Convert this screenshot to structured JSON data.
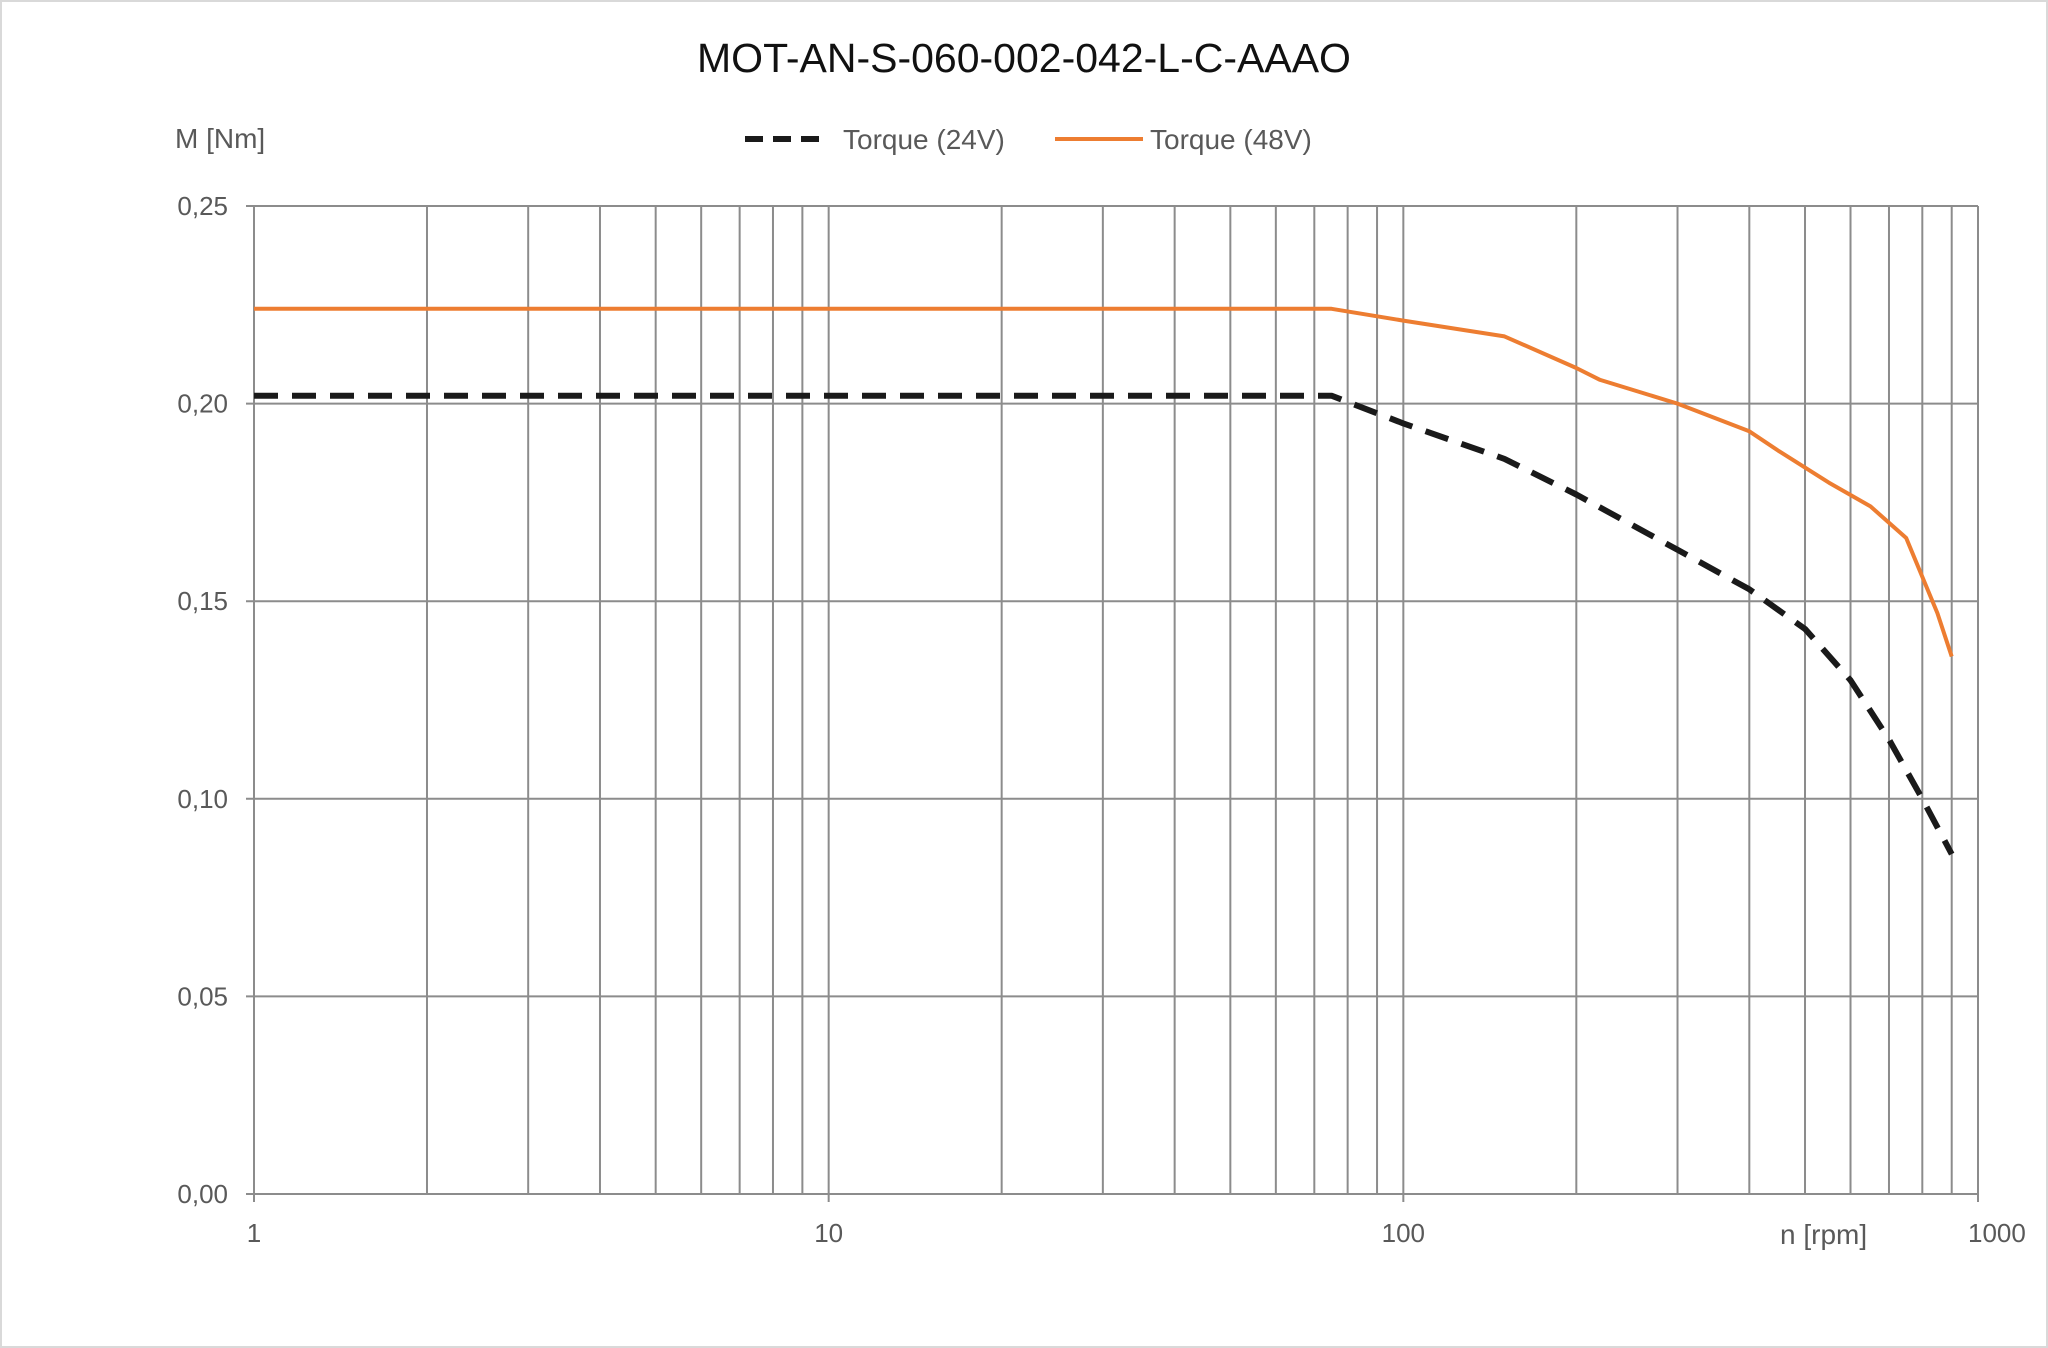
{
  "chart_data": {
    "type": "line",
    "title": "MOT-AN-S-060-002-042-L-C-AAAO",
    "xlabel": "n [rpm]",
    "ylabel": "M [Nm]",
    "xscale": "log",
    "xlim": [
      1,
      1000
    ],
    "ylim": [
      0,
      0.25
    ],
    "x_ticks": [
      "1",
      "10",
      "100",
      "1000"
    ],
    "x_tick_values": [
      1,
      10,
      100,
      1000
    ],
    "y_ticks": [
      "0,00",
      "0,05",
      "0,10",
      "0,15",
      "0,20",
      "0,25"
    ],
    "y_tick_values": [
      0,
      0.05,
      0.1,
      0.15,
      0.2,
      0.25
    ],
    "grid": true,
    "legend_position": "top",
    "series": [
      {
        "name": "Torque (24V)",
        "color": "#1a1a1a",
        "style": "dashed",
        "x": [
          1,
          75,
          100,
          150,
          200,
          300,
          400,
          500,
          600,
          700,
          800,
          900
        ],
        "y": [
          0.202,
          0.202,
          0.195,
          0.186,
          0.177,
          0.163,
          0.153,
          0.143,
          0.13,
          0.115,
          0.1,
          0.086
        ]
      },
      {
        "name": "Torque (48V)",
        "color": "#ed7d31",
        "style": "solid",
        "x": [
          1,
          75,
          100,
          150,
          200,
          220,
          300,
          400,
          450,
          550,
          650,
          750,
          850,
          900
        ],
        "y": [
          0.224,
          0.224,
          0.221,
          0.217,
          0.209,
          0.206,
          0.2,
          0.193,
          0.188,
          0.18,
          0.174,
          0.166,
          0.147,
          0.136
        ]
      }
    ]
  }
}
